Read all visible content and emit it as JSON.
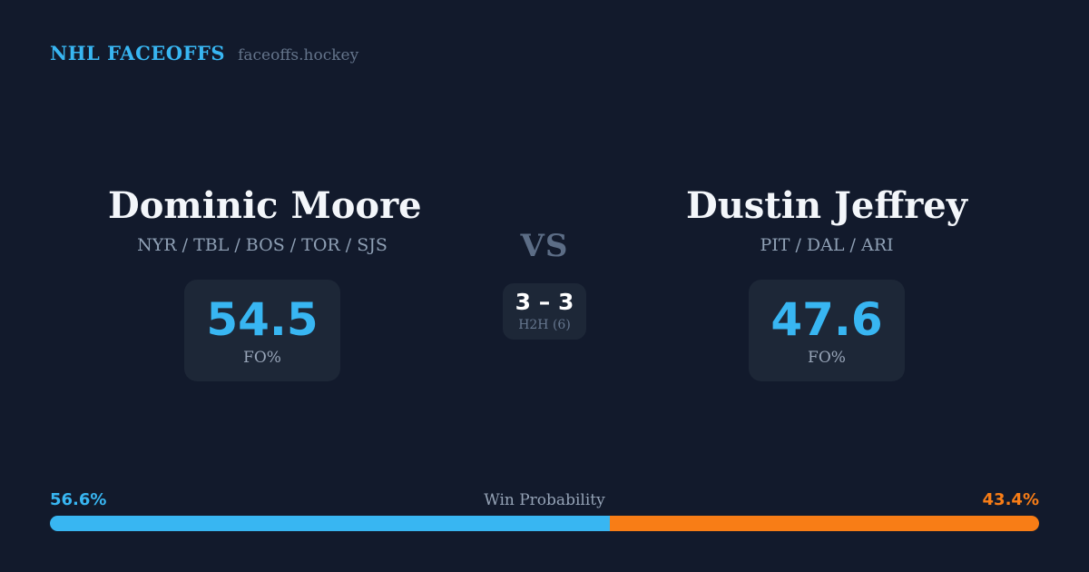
{
  "header": {
    "brand": "NHL FACEOFFS",
    "site": "faceoffs.hockey"
  },
  "players": {
    "left": {
      "name": "Dominic Moore",
      "teams": "NYR / TBL / BOS / TOR / SJS",
      "fo_pct": "54.5",
      "fo_label": "FO%"
    },
    "right": {
      "name": "Dustin Jeffrey",
      "teams": "PIT / DAL / ARI",
      "fo_pct": "47.6",
      "fo_label": "FO%"
    }
  },
  "versus": {
    "label": "VS",
    "h2h_score": "3 – 3",
    "h2h_label": "H2H (6)"
  },
  "win_probability": {
    "label": "Win Probability",
    "left_pct_text": "56.6%",
    "right_pct_text": "43.4%",
    "left_value": 56.6,
    "right_value": 43.4
  },
  "colors": {
    "background": "#121a2c",
    "card": "#1d2737",
    "blue": "#38b6f2",
    "orange": "#f87d16",
    "slate": "#64748b"
  }
}
